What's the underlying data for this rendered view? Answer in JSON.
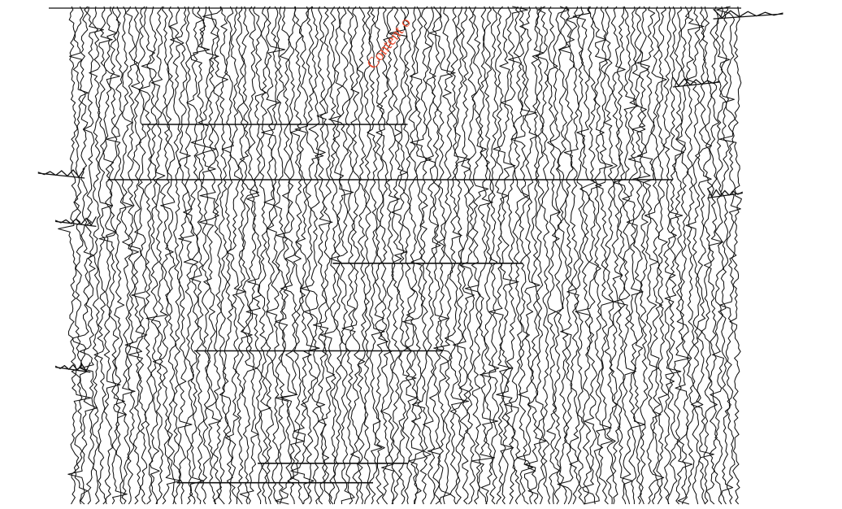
{
  "chart_data": {
    "type": "line",
    "title": "",
    "xlabel": "",
    "ylabel": "",
    "grid": false,
    "legend": "none",
    "channel_count": 116,
    "x_range": [
      0,
      116
    ],
    "time_range": [
      0,
      1
    ],
    "random_seed": 7,
    "trace_amplitude": 1.0,
    "colors": {
      "trace": "#111111",
      "background": "#ffffff",
      "watermark": "#e8472a"
    },
    "horizontal_events": [
      {
        "channel_start": 12,
        "channel_end": 58,
        "time": 0.237
      },
      {
        "channel_start": 6,
        "channel_end": 104,
        "time": 0.348
      },
      {
        "channel_start": 45,
        "channel_end": 78,
        "time": 0.516
      },
      {
        "channel_start": 21,
        "channel_end": 64,
        "time": 0.692
      },
      {
        "channel_start": 32,
        "channel_end": 58,
        "time": 0.918
      },
      {
        "channel_start": 18,
        "channel_end": 52,
        "time": 0.957
      }
    ],
    "spikes": [
      {
        "channel": 2,
        "time": 0.335,
        "side": "left",
        "reach": 8
      },
      {
        "channel": 4,
        "time": 0.432,
        "side": "left",
        "reach": 7
      },
      {
        "channel": 3,
        "time": 0.725,
        "side": "left",
        "reach": 6
      },
      {
        "channel": 111,
        "time": 0.015,
        "side": "right",
        "reach": 12
      },
      {
        "channel": 110,
        "time": 0.375,
        "side": "right",
        "reach": 6
      },
      {
        "channel": 104,
        "time": 0.152,
        "side": "right",
        "reach": 8
      }
    ]
  },
  "watermark": {
    "text": "Content o",
    "color": "#e8472a"
  }
}
